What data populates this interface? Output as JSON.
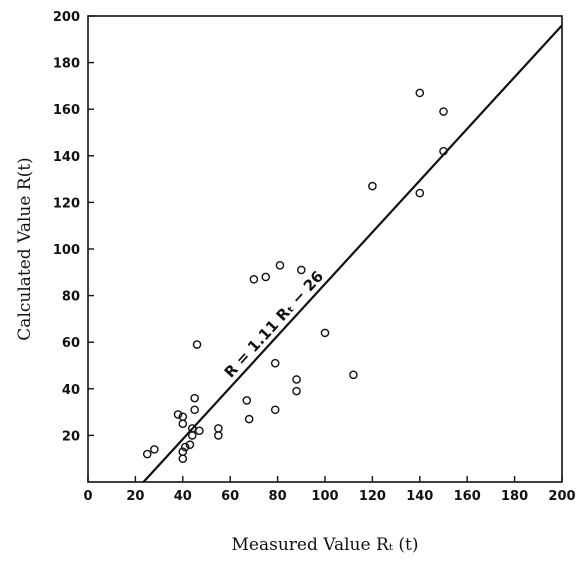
{
  "chart_data": {
    "type": "scatter",
    "title": "",
    "xlabel": "Measured Value Rₜ (t)",
    "ylabel": "Calculated Value R(t)",
    "xlim": [
      0,
      200
    ],
    "ylim": [
      0,
      200
    ],
    "x_ticks": [
      0,
      20,
      40,
      60,
      80,
      100,
      120,
      140,
      160,
      180,
      200
    ],
    "y_ticks": [
      20,
      40,
      60,
      80,
      100,
      120,
      140,
      160,
      180,
      200
    ],
    "grid": false,
    "legend": "none",
    "marker": "open-circle",
    "color": "#111111",
    "series": [
      {
        "points": [
          [
            25,
            12
          ],
          [
            28,
            14
          ],
          [
            38,
            29
          ],
          [
            40,
            28
          ],
          [
            40,
            25
          ],
          [
            40,
            13
          ],
          [
            40,
            10
          ],
          [
            41,
            15
          ],
          [
            43,
            16
          ],
          [
            44,
            20
          ],
          [
            44,
            23
          ],
          [
            45,
            31
          ],
          [
            45,
            36
          ],
          [
            46,
            59
          ],
          [
            47,
            22
          ],
          [
            55,
            23
          ],
          [
            55,
            20
          ],
          [
            67,
            35
          ],
          [
            68,
            27
          ],
          [
            70,
            87
          ],
          [
            75,
            88
          ],
          [
            79,
            51
          ],
          [
            79,
            31
          ],
          [
            81,
            93
          ],
          [
            88,
            44
          ],
          [
            88,
            39
          ],
          [
            90,
            91
          ],
          [
            100,
            64
          ],
          [
            112,
            46
          ],
          [
            120,
            127
          ],
          [
            140,
            167
          ],
          [
            140,
            124
          ],
          [
            150,
            159
          ],
          [
            150,
            142
          ]
        ]
      }
    ],
    "fit_line": {
      "slope": 1.11,
      "intercept": -26,
      "label": "R = 1.11 Rₜ − 26"
    }
  }
}
